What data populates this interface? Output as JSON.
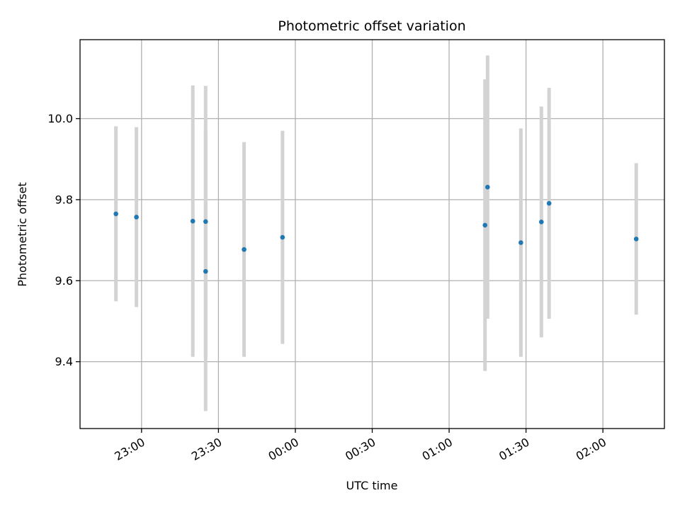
{
  "chart_data": {
    "type": "scatter",
    "title": "Photometric offset variation",
    "xlabel": "UTC time",
    "ylabel": "Photometric offset",
    "grid": true,
    "x_axis": "time",
    "xlim": [
      "22:36",
      "02:24"
    ],
    "ylim": [
      9.235,
      10.195
    ],
    "x_ticks": [
      "23:00",
      "23:30",
      "00:00",
      "00:30",
      "01:00",
      "01:30",
      "02:00"
    ],
    "y_ticks": [
      9.4,
      9.6,
      9.8,
      10.0
    ],
    "marker_color": "#1f77b4",
    "errorbar_color": "#d3d3d3",
    "points": [
      {
        "x": "22:50",
        "y": 9.765,
        "yerr": 0.216
      },
      {
        "x": "22:58",
        "y": 9.757,
        "yerr": 0.222
      },
      {
        "x": "23:20",
        "y": 9.747,
        "yerr": 0.335
      },
      {
        "x": "23:25",
        "y": 9.746,
        "yerr": 0.335
      },
      {
        "x": "23:25",
        "y": 9.623,
        "yerr": 0.345
      },
      {
        "x": "23:40",
        "y": 9.677,
        "yerr": 0.265
      },
      {
        "x": "23:55",
        "y": 9.707,
        "yerr": 0.263
      },
      {
        "x": "01:14",
        "y": 9.737,
        "yerr": 0.36
      },
      {
        "x": "01:15",
        "y": 9.831,
        "yerr": 0.325
      },
      {
        "x": "01:28",
        "y": 9.694,
        "yerr": 0.282
      },
      {
        "x": "01:36",
        "y": 9.745,
        "yerr": 0.285
      },
      {
        "x": "01:39",
        "y": 9.791,
        "yerr": 0.285
      },
      {
        "x": "02:13",
        "y": 9.703,
        "yerr": 0.187
      }
    ]
  }
}
